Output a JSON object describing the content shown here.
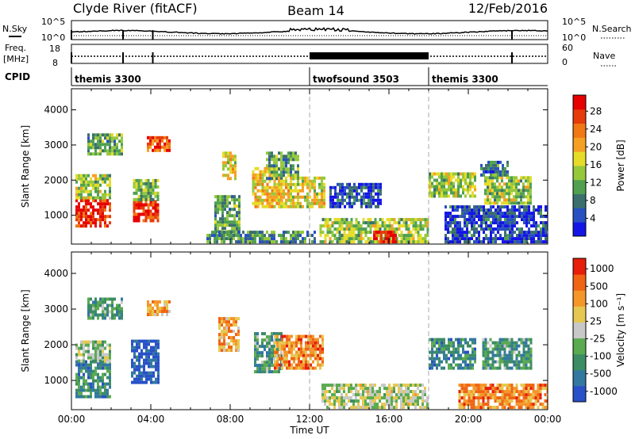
{
  "header": {
    "station": "Clyde River (fitACF)",
    "beam": "Beam 14",
    "date": "12/Feb/2016"
  },
  "strip_labels": {
    "nsky": "N.Sky",
    "freq": "Freq.",
    "freq_unit": "[MHz]",
    "cpid": "CPID",
    "nsearch": "N.Search",
    "nave": "Nave",
    "noise_ticks_left": [
      "10^5",
      "10^0"
    ],
    "noise_ticks_right": [
      "10^5",
      "10^0"
    ],
    "freq_ticks": [
      "18",
      "8"
    ],
    "nave_ticks": [
      "60",
      "0"
    ]
  },
  "cpid_segments": [
    {
      "label": "themis 3300",
      "start": 0,
      "end": 12
    },
    {
      "label": "twofsound 3503",
      "start": 12,
      "end": 18
    },
    {
      "label": "themis 3300",
      "start": 18,
      "end": 24
    }
  ],
  "chart_data": [
    {
      "type": "heatmap",
      "panel": "power",
      "ylabel": "Slant Range [km]",
      "ylim": [
        180,
        4600
      ],
      "yticks": [
        "1000",
        "2000",
        "3000",
        "4000"
      ],
      "xlim": [
        0,
        24
      ],
      "colorbar": {
        "label": "Power [dB]",
        "ticks": [
          "4",
          "8",
          "12",
          "16",
          "20",
          "24",
          "28"
        ],
        "colors": [
          "#1414e6",
          "#2850c0",
          "#3c6e6e",
          "#50a050",
          "#96c83c",
          "#e6dc28",
          "#f5a023",
          "#f07814",
          "#e63c0a",
          "#e60000"
        ]
      },
      "echo_regions": [
        {
          "t0": 0.2,
          "t1": 2.0,
          "r0": 650,
          "r1": 1450,
          "level": 0.92
        },
        {
          "t0": 0.2,
          "t1": 2.0,
          "r0": 1450,
          "r1": 2150,
          "level": 0.45
        },
        {
          "t0": 0.8,
          "t1": 2.6,
          "r0": 2700,
          "r1": 3300,
          "level": 0.35
        },
        {
          "t0": 3.1,
          "t1": 4.4,
          "r0": 800,
          "r1": 1400,
          "level": 0.9
        },
        {
          "t0": 3.1,
          "t1": 4.4,
          "r0": 1400,
          "r1": 2000,
          "level": 0.4
        },
        {
          "t0": 3.8,
          "t1": 4.9,
          "r0": 2800,
          "r1": 3200,
          "level": 0.8
        },
        {
          "t0": 7.2,
          "t1": 8.4,
          "r0": 400,
          "r1": 1500,
          "level": 0.35
        },
        {
          "t0": 7.6,
          "t1": 8.3,
          "r0": 2000,
          "r1": 2800,
          "level": 0.55
        },
        {
          "t0": 9.1,
          "t1": 10.6,
          "r0": 1200,
          "r1": 2300,
          "level": 0.6
        },
        {
          "t0": 9.8,
          "t1": 11.4,
          "r0": 2000,
          "r1": 2800,
          "level": 0.35
        },
        {
          "t0": 10.4,
          "t1": 12.7,
          "r0": 1200,
          "r1": 2100,
          "level": 0.55
        },
        {
          "t0": 6.8,
          "t1": 12.2,
          "r0": 200,
          "r1": 500,
          "level": 0.3
        },
        {
          "t0": 12.5,
          "t1": 17.9,
          "r0": 200,
          "r1": 900,
          "level": 0.45
        },
        {
          "t0": 15.2,
          "t1": 16.4,
          "r0": 200,
          "r1": 500,
          "level": 0.95
        },
        {
          "t0": 13.0,
          "t1": 15.6,
          "r0": 1200,
          "r1": 1900,
          "level": 0.15
        },
        {
          "t0": 18.0,
          "t1": 20.3,
          "r0": 1500,
          "r1": 2200,
          "level": 0.45
        },
        {
          "t0": 20.8,
          "t1": 23.2,
          "r0": 1300,
          "r1": 2100,
          "level": 0.45
        },
        {
          "t0": 20.6,
          "t1": 22.0,
          "r0": 2100,
          "r1": 2500,
          "level": 0.25
        },
        {
          "t0": 18.8,
          "t1": 24.0,
          "r0": 200,
          "r1": 1200,
          "level": 0.15
        }
      ]
    },
    {
      "type": "heatmap",
      "panel": "velocity",
      "ylabel": "Slant Range [km]",
      "ylim": [
        180,
        4600
      ],
      "yticks": [
        "1000",
        "2000",
        "3000",
        "4000"
      ],
      "xlim": [
        0,
        24
      ],
      "xlabel": "Time UT",
      "xticks": [
        "00:00",
        "04:00",
        "08:00",
        "12:00",
        "16:00",
        "20:00",
        "00:00"
      ],
      "colorbar": {
        "label": "Velocity [m s⁻¹]",
        "ticks": [
          "1000",
          "500",
          "100",
          "25",
          "-25",
          "-100",
          "-500",
          "-1000"
        ],
        "colors": [
          "#2850c8",
          "#3278a0",
          "#3c8c64",
          "#5aaa50",
          "#c8c8c8",
          "#e6c850",
          "#f59628",
          "#f06414",
          "#e61e0a"
        ]
      },
      "echo_regions": [
        {
          "t0": 0.2,
          "t1": 2.0,
          "r0": 500,
          "r1": 1500,
          "level": 0.25
        },
        {
          "t0": 0.2,
          "t1": 2.0,
          "r0": 1500,
          "r1": 2100,
          "level": 0.45
        },
        {
          "t0": 0.8,
          "t1": 2.6,
          "r0": 2700,
          "r1": 3300,
          "level": 0.3
        },
        {
          "t0": 3.0,
          "t1": 4.4,
          "r0": 900,
          "r1": 2100,
          "level": 0.05
        },
        {
          "t0": 3.8,
          "t1": 4.9,
          "r0": 2800,
          "r1": 3200,
          "level": 0.7
        },
        {
          "t0": 7.4,
          "t1": 8.4,
          "r0": 1800,
          "r1": 2700,
          "level": 0.7
        },
        {
          "t0": 9.2,
          "t1": 10.6,
          "r0": 1200,
          "r1": 2300,
          "level": 0.3
        },
        {
          "t0": 10.2,
          "t1": 12.6,
          "r0": 1300,
          "r1": 2200,
          "level": 0.75
        },
        {
          "t0": 12.6,
          "t1": 17.9,
          "r0": 200,
          "r1": 900,
          "level": 0.5
        },
        {
          "t0": 18.0,
          "t1": 20.3,
          "r0": 1300,
          "r1": 2100,
          "level": 0.25
        },
        {
          "t0": 20.7,
          "t1": 23.2,
          "r0": 1300,
          "r1": 2100,
          "level": 0.3
        },
        {
          "t0": 19.5,
          "t1": 24.0,
          "r0": 200,
          "r1": 900,
          "level": 0.75
        }
      ]
    }
  ]
}
